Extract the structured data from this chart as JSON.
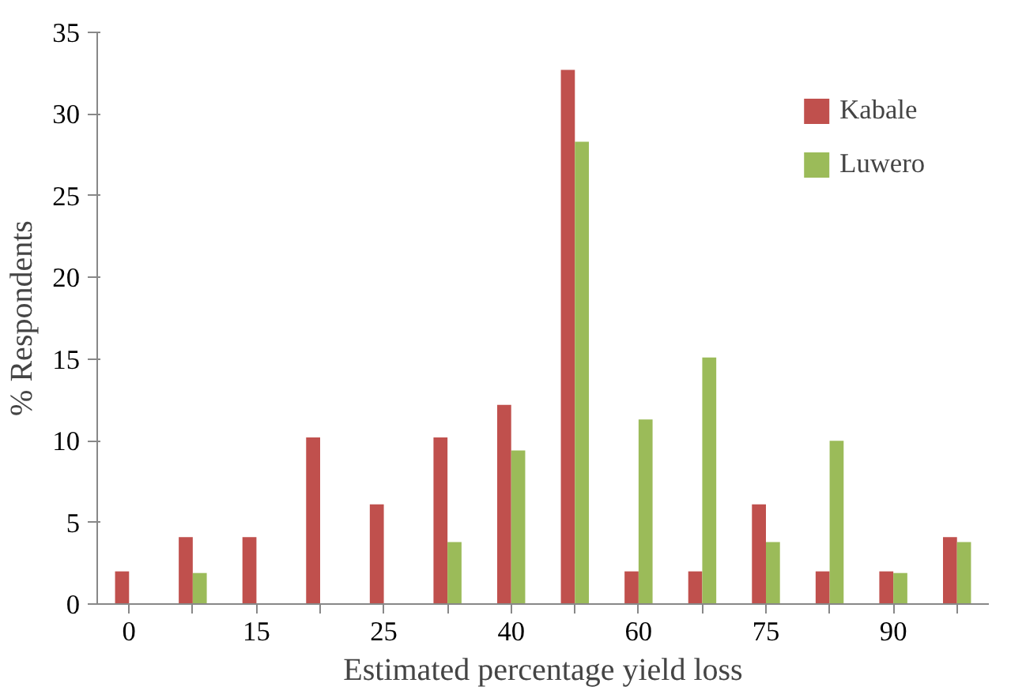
{
  "chart_data": {
    "type": "bar",
    "xlabel": "Estimated percentage yield loss",
    "ylabel": "% Respondents",
    "categories": [
      "0",
      null,
      "15",
      null,
      "25",
      null,
      "40",
      null,
      "60",
      null,
      "75",
      null,
      "90",
      null
    ],
    "series": [
      {
        "name": "Kabale",
        "color": "#c0504d",
        "values": [
          2,
          4.1,
          4.1,
          10.2,
          6.1,
          10.2,
          12.2,
          32.7,
          2,
          2,
          6.1,
          2,
          2,
          4.1
        ]
      },
      {
        "name": "Luwero",
        "color": "#9bbb59",
        "values": [
          null,
          1.9,
          null,
          null,
          null,
          3.8,
          9.4,
          28.3,
          11.3,
          15.1,
          3.8,
          10,
          1.9,
          3.8
        ]
      }
    ],
    "ylim": [
      0,
      35
    ],
    "yticks": [
      0,
      5,
      10,
      15,
      20,
      25,
      30,
      35
    ],
    "grid": false,
    "legend": "top right"
  }
}
